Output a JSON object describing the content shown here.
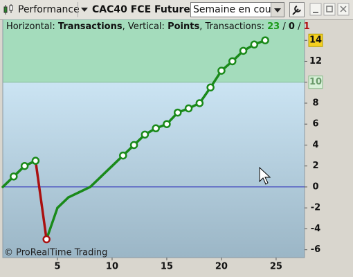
{
  "toolbar": {
    "performance": "Performance",
    "instrument": "CAC40 FCE Future",
    "period": "Semaine en cours"
  },
  "chart_data": {
    "type": "line",
    "info": {
      "h_label": "Horizontal:",
      "h_value": "Transactions",
      "v_label": ", Vertical:",
      "v_value": "Points",
      "t_label": ", Transactions:",
      "wins": "23",
      "sep1": "/",
      "neutral": "0",
      "sep2": "/",
      "losses": "1"
    },
    "watermark": "© ProRealTime Trading",
    "x": [
      0,
      1,
      2,
      3,
      4,
      5,
      6,
      7,
      8,
      9,
      10,
      11,
      12,
      13,
      14,
      15,
      16,
      17,
      18,
      19,
      20,
      21,
      22,
      23,
      24
    ],
    "values": [
      0,
      1,
      2,
      2.5,
      -5,
      -2,
      -1,
      -0.5,
      0,
      1,
      2,
      3,
      4,
      5,
      5.6,
      6,
      7.1,
      7.5,
      8,
      9.5,
      11.1,
      12,
      13,
      13.6,
      14
    ],
    "colors": [
      "#1a8a1a",
      "#1a8a1a",
      "#1a8a1a",
      "#1a8a1a",
      "#aa1010",
      "#1a8a1a",
      "#1a8a1a",
      "#1a8a1a",
      "#1a8a1a",
      "#1a8a1a",
      "#1a8a1a",
      "#1a8a1a",
      "#1a8a1a",
      "#1a8a1a",
      "#1a8a1a",
      "#1a8a1a",
      "#1a8a1a",
      "#1a8a1a",
      "#1a8a1a",
      "#1a8a1a",
      "#1a8a1a",
      "#1a8a1a",
      "#1a8a1a",
      "#1a8a1a",
      "#1a8a1a"
    ],
    "markers": [
      false,
      true,
      true,
      true,
      true,
      false,
      false,
      false,
      false,
      false,
      false,
      true,
      true,
      true,
      true,
      true,
      true,
      true,
      true,
      true,
      true,
      true,
      true,
      true,
      true
    ],
    "xlim": [
      0,
      27.6
    ],
    "ylim": [
      -6.75,
      16
    ],
    "xticks": [
      5,
      10,
      15,
      20,
      25
    ],
    "yticks": [
      -6,
      -4,
      -2,
      0,
      2,
      4,
      6,
      8,
      10,
      12,
      14
    ],
    "zone_threshold": 10,
    "last_value": 14,
    "zero_line_color": "#2a2ab8"
  }
}
